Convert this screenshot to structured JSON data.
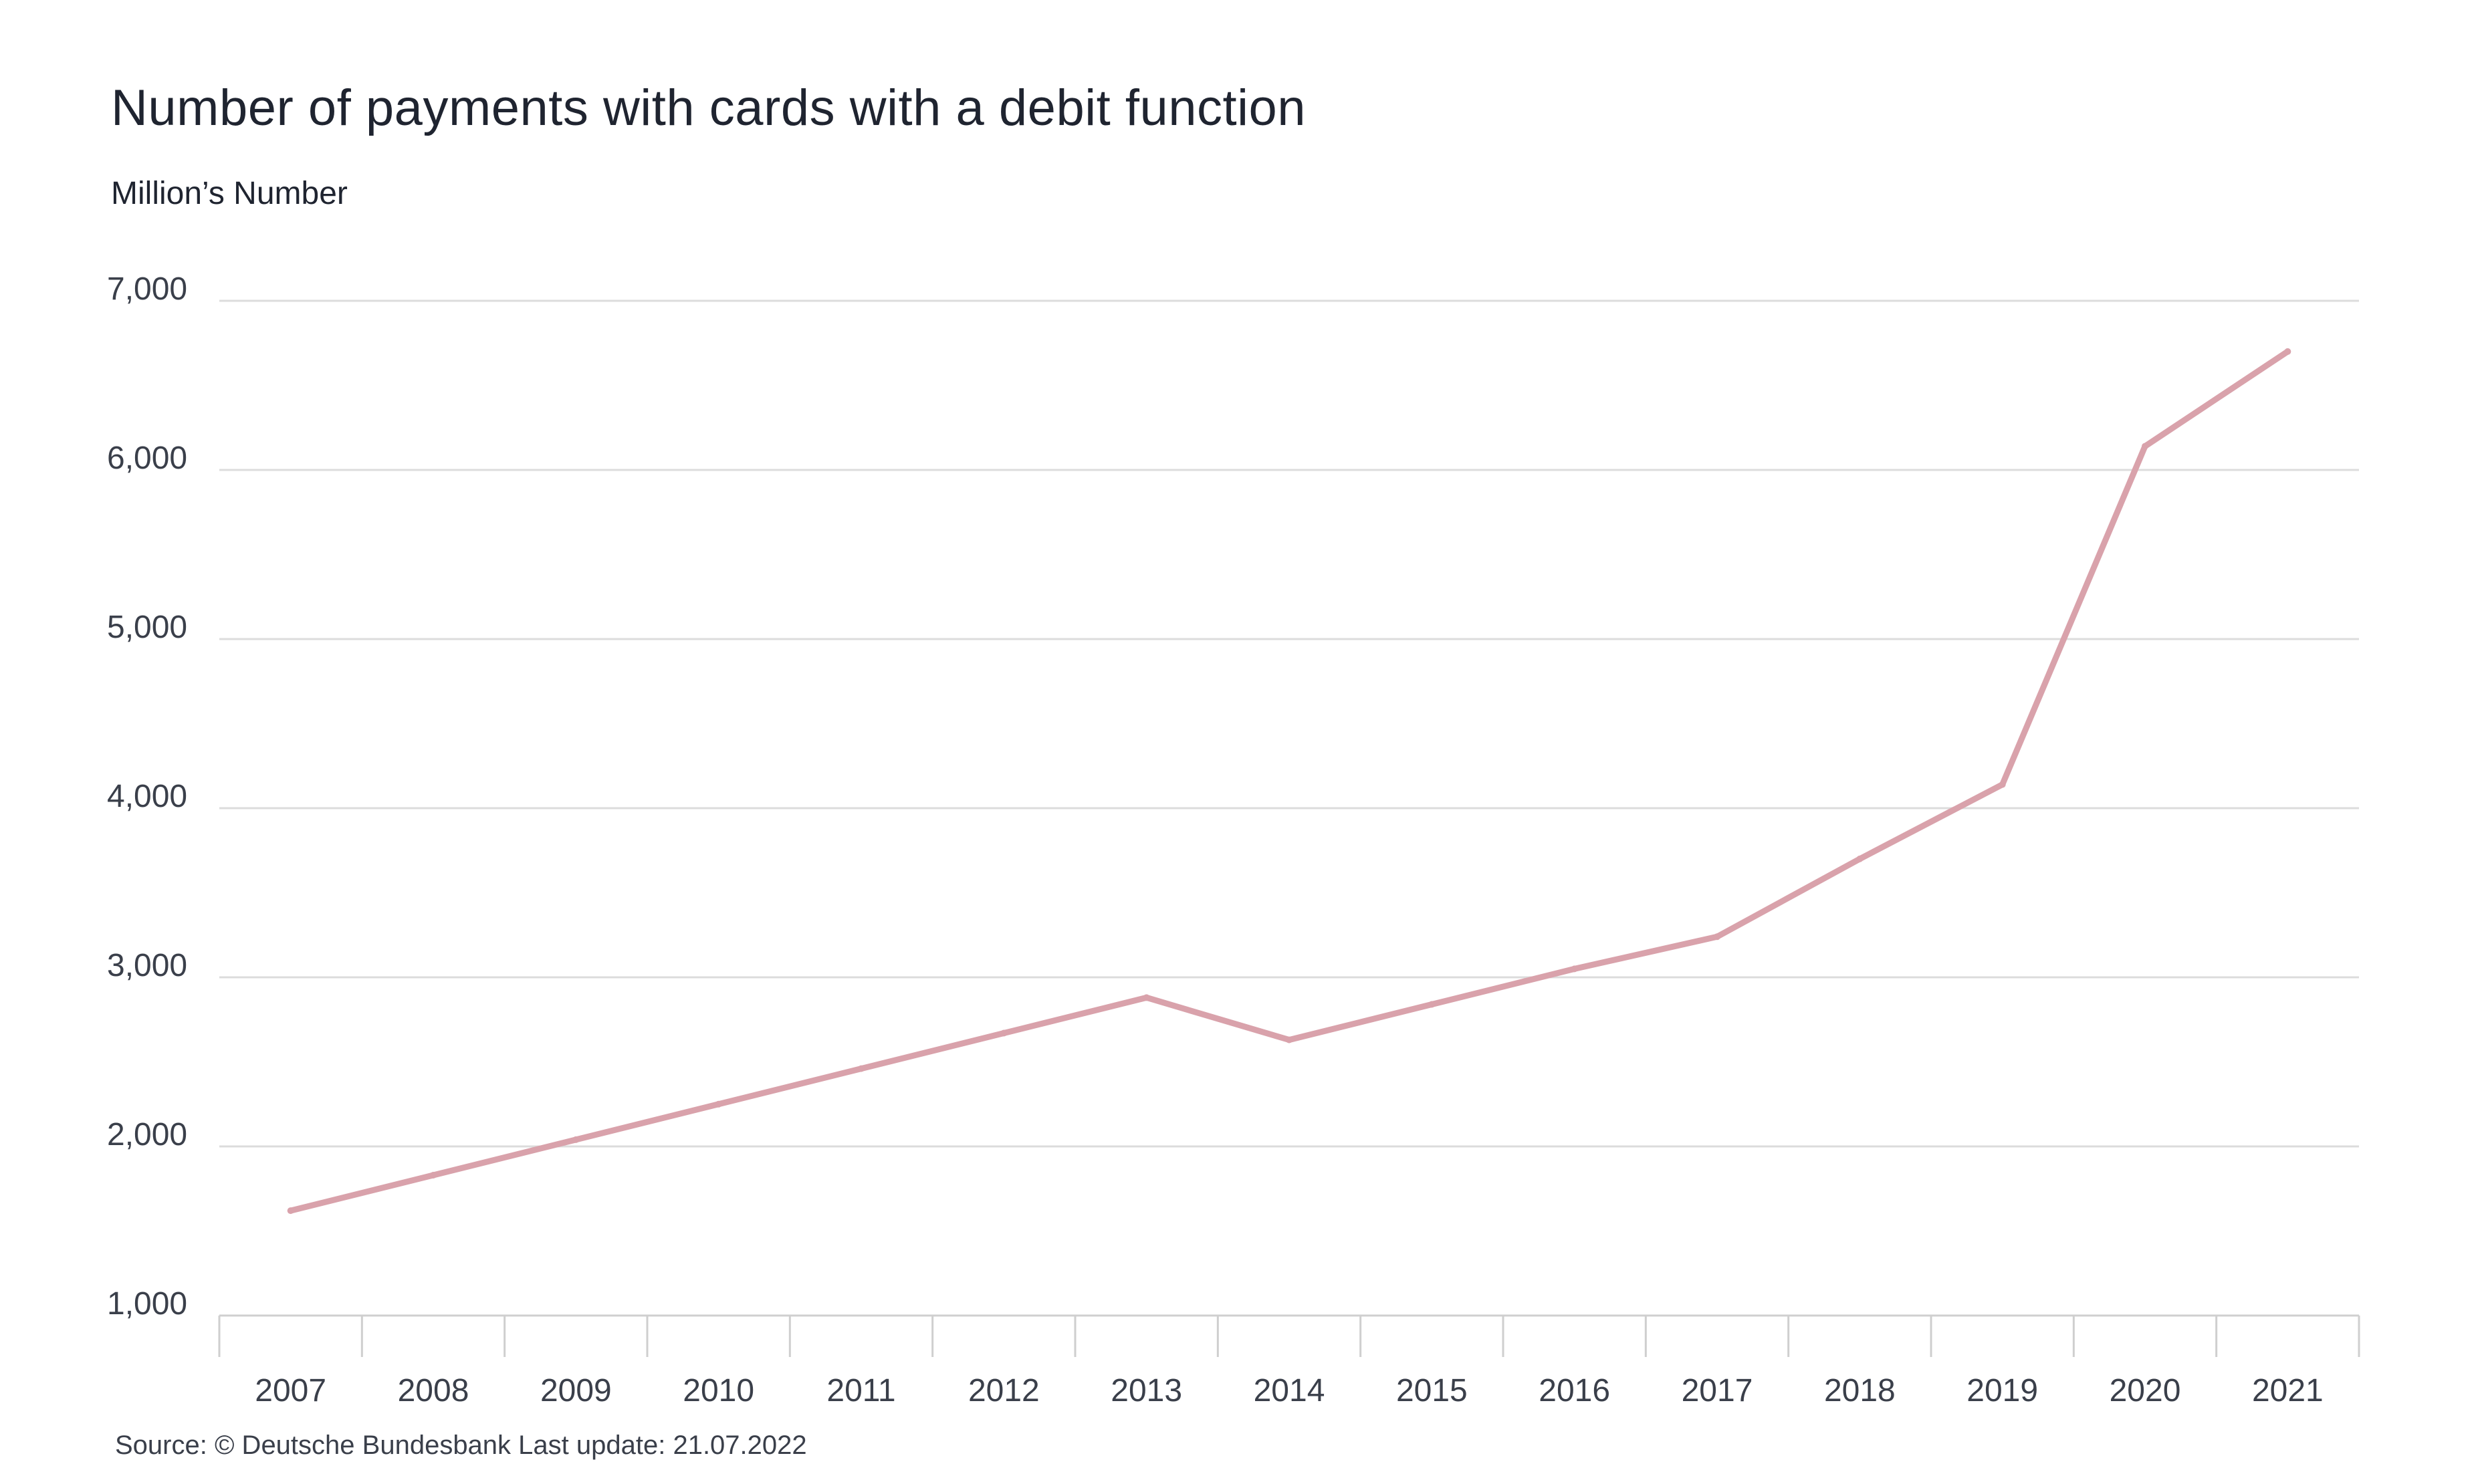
{
  "chart_data": {
    "type": "line",
    "title": "Number of payments with cards with a debit function",
    "ylabel": "Million’s Number",
    "xlabel": "",
    "source": "Source: © Deutsche Bundesbank Last update: 21.07.2022",
    "categories": [
      "2007",
      "2008",
      "2009",
      "2010",
      "2011",
      "2012",
      "2013",
      "2014",
      "2015",
      "2016",
      "2017",
      "2018",
      "2019",
      "2020",
      "2021"
    ],
    "series": [
      {
        "values": [
          1620,
          1830,
          2040,
          2250,
          2460,
          2670,
          2880,
          2630,
          2840,
          3050,
          3240,
          3700,
          4140,
          6140,
          6700
        ]
      }
    ],
    "ylim": [
      1000,
      7000
    ],
    "yticks": [
      1000,
      2000,
      3000,
      4000,
      5000,
      6000,
      7000
    ],
    "ytick_labels": [
      "1,000",
      "2,000",
      "3,000",
      "4,000",
      "5,000",
      "6,000",
      "7,000"
    ],
    "grid": true,
    "legend": "none",
    "colors": {
      "line": "#d9a2ab",
      "grid": "#dcdcdc",
      "axis": "#cfcfcf",
      "text": "#1f2430"
    }
  }
}
